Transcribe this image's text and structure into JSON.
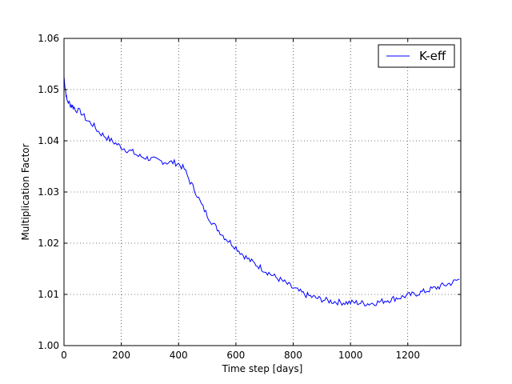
{
  "chart_data": {
    "type": "line",
    "title": "",
    "xlabel": "Time step [days]",
    "ylabel": "Multiplication Factor",
    "xlim": [
      0,
      1385
    ],
    "ylim": [
      1.0,
      1.06
    ],
    "x_ticks": [
      0,
      200,
      400,
      600,
      800,
      1000,
      1200
    ],
    "y_ticks": [
      1.0,
      1.01,
      1.02,
      1.03,
      1.04,
      1.05,
      1.06
    ],
    "x_tick_labels": [
      "0",
      "200",
      "400",
      "600",
      "800",
      "1000",
      "1200"
    ],
    "y_tick_labels": [
      "1.00",
      "1.01",
      "1.02",
      "1.03",
      "1.04",
      "1.05",
      "1.06"
    ],
    "grid": true,
    "legend_position": "top-right",
    "series": [
      {
        "name": "K-eff",
        "color": "#0000ff",
        "points": [
          [
            0,
            1.0525
          ],
          [
            5,
            1.05
          ],
          [
            10,
            1.048
          ],
          [
            20,
            1.0472
          ],
          [
            30,
            1.0468
          ],
          [
            40,
            1.0462
          ],
          [
            60,
            1.0455
          ],
          [
            80,
            1.044
          ],
          [
            100,
            1.0432
          ],
          [
            120,
            1.0418
          ],
          [
            140,
            1.041
          ],
          [
            160,
            1.0402
          ],
          [
            180,
            1.0395
          ],
          [
            200,
            1.0388
          ],
          [
            220,
            1.0382
          ],
          [
            240,
            1.0378
          ],
          [
            260,
            1.037
          ],
          [
            280,
            1.0368
          ],
          [
            300,
            1.0365
          ],
          [
            320,
            1.0362
          ],
          [
            340,
            1.036
          ],
          [
            360,
            1.0358
          ],
          [
            380,
            1.0358
          ],
          [
            400,
            1.0355
          ],
          [
            420,
            1.0345
          ],
          [
            440,
            1.032
          ],
          [
            460,
            1.03
          ],
          [
            480,
            1.0275
          ],
          [
            500,
            1.0255
          ],
          [
            520,
            1.0238
          ],
          [
            540,
            1.0225
          ],
          [
            560,
            1.0212
          ],
          [
            580,
            1.0202
          ],
          [
            600,
            1.0192
          ],
          [
            620,
            1.018
          ],
          [
            640,
            1.017
          ],
          [
            660,
            1.0162
          ],
          [
            680,
            1.0155
          ],
          [
            700,
            1.0147
          ],
          [
            720,
            1.014
          ],
          [
            740,
            1.0133
          ],
          [
            760,
            1.0127
          ],
          [
            780,
            1.012
          ],
          [
            800,
            1.0112
          ],
          [
            820,
            1.0106
          ],
          [
            840,
            1.01
          ],
          [
            860,
            1.0096
          ],
          [
            880,
            1.0093
          ],
          [
            900,
            1.009
          ],
          [
            920,
            1.0088
          ],
          [
            940,
            1.0086
          ],
          [
            960,
            1.0085
          ],
          [
            980,
            1.0084
          ],
          [
            1000,
            1.0084
          ],
          [
            1020,
            1.0084
          ],
          [
            1040,
            1.0083
          ],
          [
            1060,
            1.0082
          ],
          [
            1080,
            1.0083
          ],
          [
            1100,
            1.0085
          ],
          [
            1120,
            1.0088
          ],
          [
            1140,
            1.009
          ],
          [
            1160,
            1.0093
          ],
          [
            1180,
            1.0095
          ],
          [
            1200,
            1.0098
          ],
          [
            1220,
            1.01
          ],
          [
            1240,
            1.0103
          ],
          [
            1260,
            1.0106
          ],
          [
            1280,
            1.011
          ],
          [
            1300,
            1.0113
          ],
          [
            1320,
            1.0117
          ],
          [
            1340,
            1.012
          ],
          [
            1360,
            1.0124
          ],
          [
            1380,
            1.013
          ]
        ]
      }
    ]
  }
}
